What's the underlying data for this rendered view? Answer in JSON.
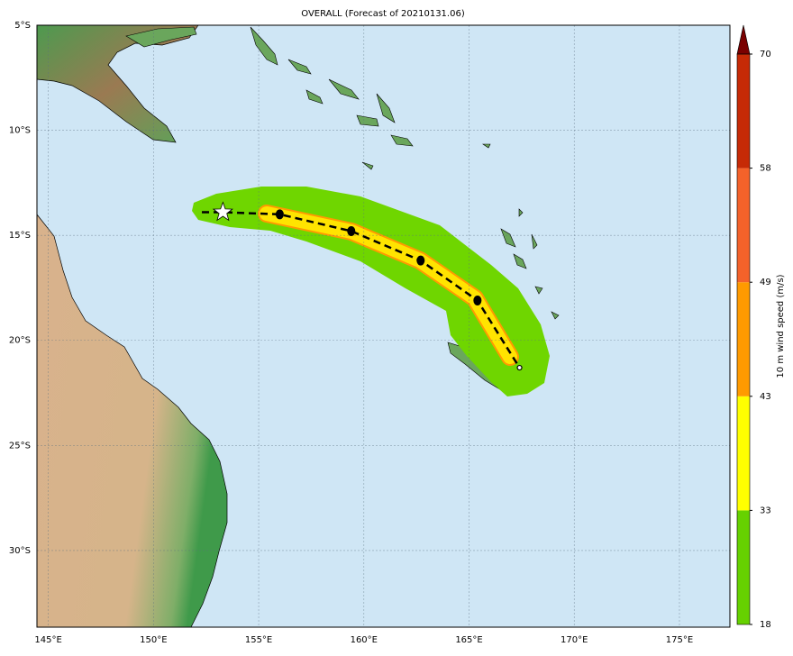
{
  "chart_data": {
    "type": "map",
    "title": "OVERALL (Forecast of 20210131.06)",
    "xlim": [
      144.46,
      177.4
    ],
    "ylim": [
      -33.65,
      -5
    ],
    "xticks": [
      {
        "value": 145,
        "label": "145°E"
      },
      {
        "value": 150,
        "label": "150°E"
      },
      {
        "value": 155,
        "label": "155°E"
      },
      {
        "value": 160,
        "label": "160°E"
      },
      {
        "value": 165,
        "label": "165°E"
      },
      {
        "value": 170,
        "label": "170°E"
      },
      {
        "value": 175,
        "label": "175°E"
      }
    ],
    "yticks": [
      {
        "value": -5,
        "label": "5°S"
      },
      {
        "value": -10,
        "label": "10°S"
      },
      {
        "value": -15,
        "label": "15°S"
      },
      {
        "value": -20,
        "label": "20°S"
      },
      {
        "value": -25,
        "label": "25°S"
      },
      {
        "value": -30,
        "label": "30°S"
      }
    ],
    "grid": true,
    "track": {
      "lon": [
        152.3,
        153.3,
        156.0,
        159.4,
        162.7,
        165.4,
        167.4
      ],
      "lat": [
        -13.9,
        -13.9,
        -14.0,
        -14.8,
        -16.2,
        -18.1,
        -21.3
      ]
    },
    "colorbar": {
      "label": "10 m wind speed (m/s)",
      "ticks": [
        18,
        33,
        43,
        49,
        58,
        70
      ],
      "colors": [
        "#66d100",
        "#ffff00",
        "#ff9a00",
        "#f4622a",
        "#c62a06"
      ],
      "extend_color": "#7a0000"
    }
  }
}
